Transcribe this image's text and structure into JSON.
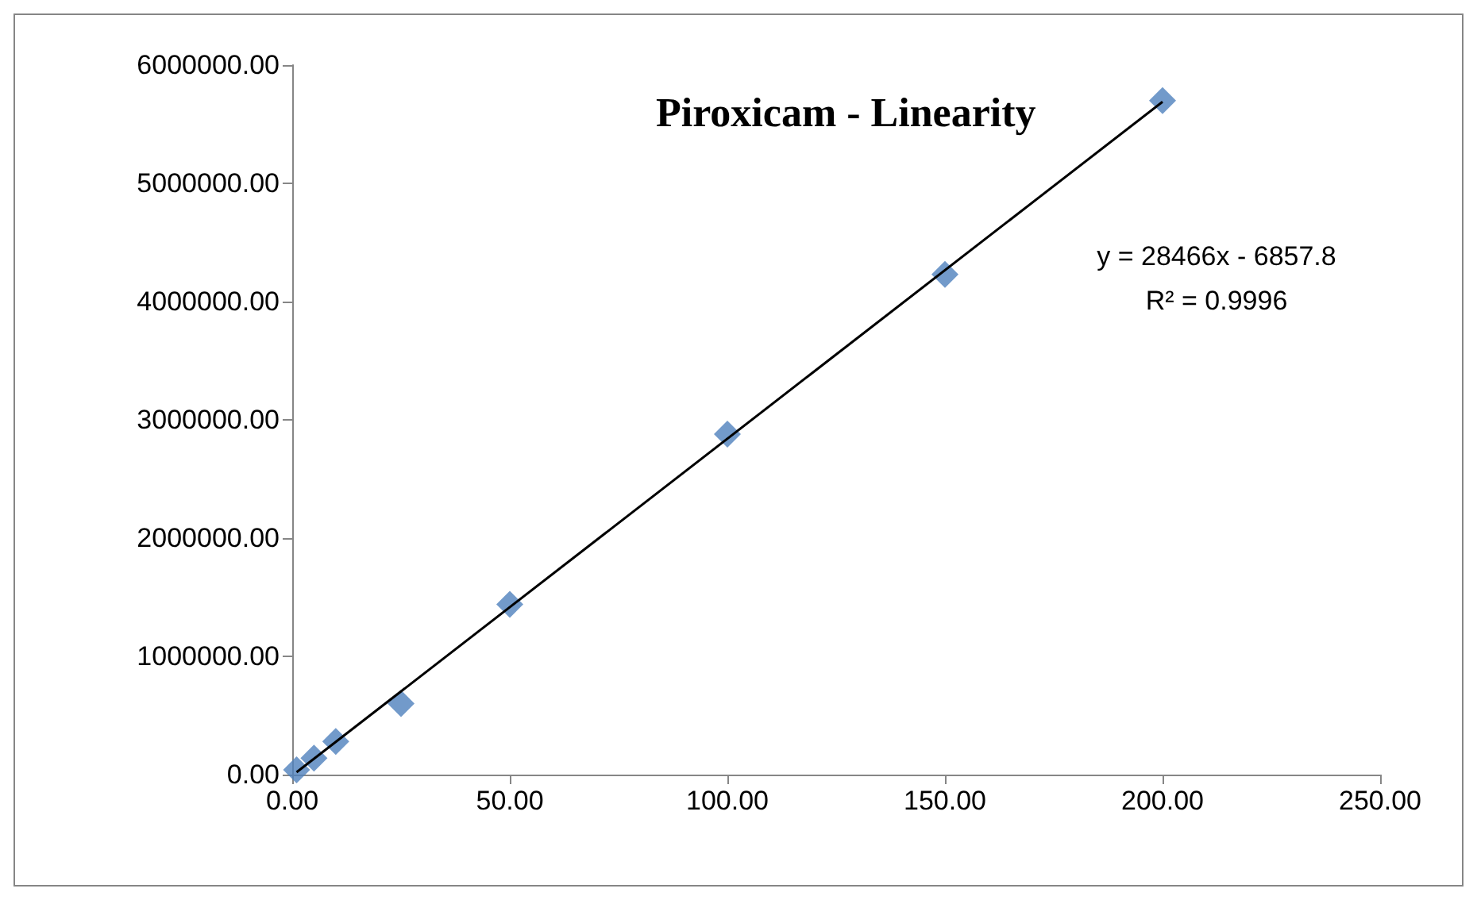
{
  "chart_data": {
    "type": "scatter",
    "title": "Piroxicam - Linearity",
    "x": [
      1,
      5,
      10,
      25,
      50,
      100,
      150,
      200
    ],
    "series": [
      {
        "color": "#4f81bd",
        "marker": "diamond",
        "values": [
          40000,
          140000,
          280000,
          600000,
          1440000,
          2880000,
          4230000,
          5700000
        ]
      },
      {
        "type": "line",
        "color": "#000000",
        "marker": "none",
        "x": [
          1,
          200
        ],
        "values": [
          20000,
          5690000
        ]
      }
    ],
    "xlim": [
      0,
      250
    ],
    "xticks": [
      {
        "value": 0,
        "label": "0.00"
      },
      {
        "value": 50,
        "label": "50.00"
      },
      {
        "value": 100,
        "label": "100.00"
      },
      {
        "value": 150,
        "label": "150.00"
      },
      {
        "value": 200,
        "label": "200.00"
      },
      {
        "value": 250,
        "label": "250.00"
      }
    ],
    "ylim": [
      0,
      6000000
    ],
    "yticks": [
      {
        "value": 0,
        "label": "0.00"
      },
      {
        "value": 1000000,
        "label": "1000000.00"
      },
      {
        "value": 2000000,
        "label": "2000000.00"
      },
      {
        "value": 3000000,
        "label": "3000000.00"
      },
      {
        "value": 4000000,
        "label": "4000000.00"
      },
      {
        "value": 5000000,
        "label": "5000000.00"
      },
      {
        "value": 6000000,
        "label": "6000000.00"
      }
    ],
    "annotations": [
      "y = 28466x - 6857.8",
      "R² = 0.9996"
    ],
    "grid": false,
    "line_style": "solid"
  }
}
